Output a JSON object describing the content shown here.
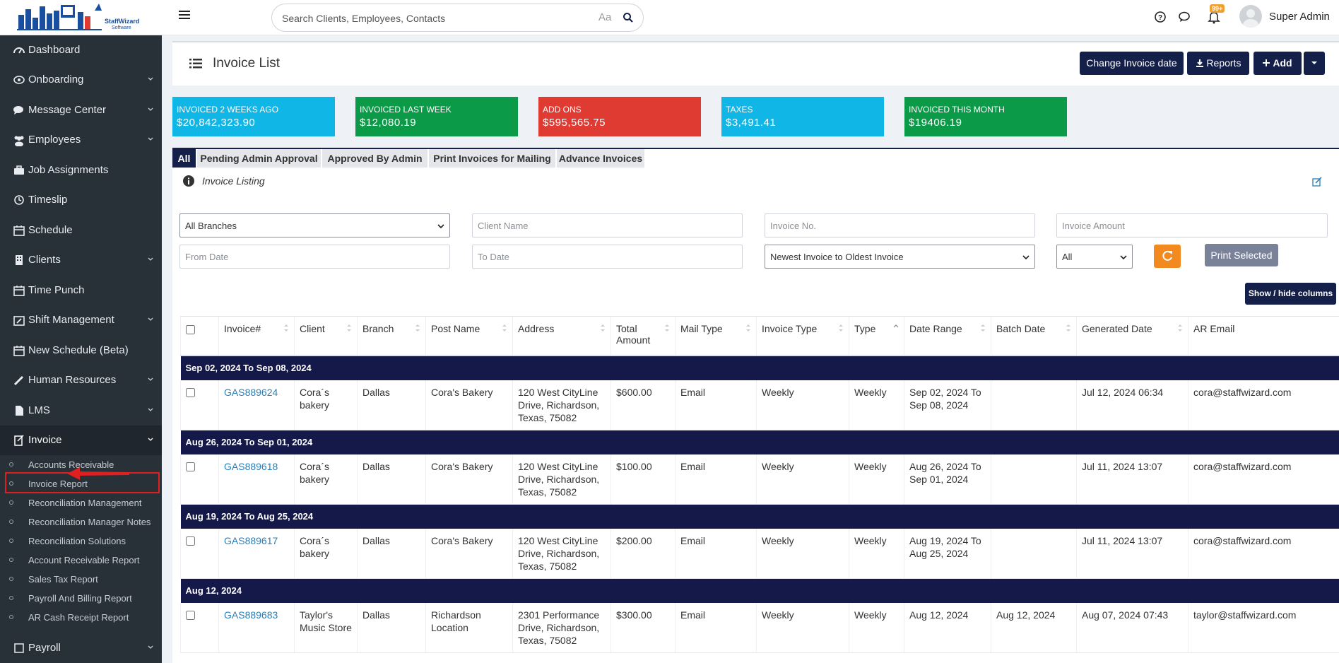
{
  "header": {
    "search_placeholder": "Search Clients, Employees, Contacts",
    "font_toggle": "Aa",
    "notification_count": "99+",
    "user_name": "Super Admin"
  },
  "sidebar": {
    "items": [
      {
        "label": "Dashboard",
        "icon": "dashboard-icon",
        "chevron": false
      },
      {
        "label": "Onboarding",
        "icon": "onboarding-icon",
        "chevron": true
      },
      {
        "label": "Message Center",
        "icon": "chat-icon",
        "chevron": true
      },
      {
        "label": "Employees",
        "icon": "users-icon",
        "chevron": true
      },
      {
        "label": "Job Assignments",
        "icon": "briefcase-icon",
        "chevron": false
      },
      {
        "label": "Timeslip",
        "icon": "clock-icon",
        "chevron": false
      },
      {
        "label": "Schedule",
        "icon": "calendar-icon",
        "chevron": false
      },
      {
        "label": "Clients",
        "icon": "building-icon",
        "chevron": true
      },
      {
        "label": "Time Punch",
        "icon": "calendar-icon",
        "chevron": false
      },
      {
        "label": "Shift Management",
        "icon": "calendar-edit-icon",
        "chevron": true
      },
      {
        "label": "New Schedule (Beta)",
        "icon": "calendar-icon",
        "chevron": false
      },
      {
        "label": "Human Resources",
        "icon": "pencil-icon",
        "chevron": true
      },
      {
        "label": "LMS",
        "icon": "file-icon",
        "chevron": true
      },
      {
        "label": "Invoice",
        "icon": "invoice-icon",
        "chevron": true
      },
      {
        "label": "Payroll",
        "icon": "payroll-icon",
        "chevron": true
      }
    ],
    "sub_items": [
      "Accounts Receivable",
      "Invoice Report",
      "Reconciliation Management",
      "Reconciliation Manager Notes",
      "Reconciliation Solutions",
      "Account Receivable Report",
      "Sales Tax Report",
      "Payroll And Billing Report",
      "AR Cash Receipt Report"
    ]
  },
  "page": {
    "title": "Invoice List",
    "buttons": {
      "change_date": "Change Invoice date",
      "reports": "Reports",
      "add": "Add"
    }
  },
  "stats": [
    {
      "label": "INVOICED 2 WEEKS AGO",
      "value": "$20,842,323.90",
      "color": "#10b6e6"
    },
    {
      "label": "INVOICED LAST WEEK",
      "value": "$12,080.19",
      "color": "#0a9a48"
    },
    {
      "label": "ADD ONS",
      "value": "$595,565.75",
      "color": "#e03b33"
    },
    {
      "label": "TAXES",
      "value": "$3,491.41",
      "color": "#10b6e6"
    },
    {
      "label": "INVOICED THIS MONTH",
      "value": "$19406.19",
      "color": "#0a9a48"
    }
  ],
  "tabs": [
    "All",
    "Pending Admin Approval",
    "Approved By Admin",
    "Print Invoices for Mailing",
    "Advance Invoices"
  ],
  "listing_label": "Invoice Listing",
  "filters": {
    "branch": "All Branches",
    "client_placeholder": "Client Name",
    "invoice_no_placeholder": "Invoice No.",
    "amount_placeholder": "Invoice Amount",
    "from_placeholder": "From Date",
    "to_placeholder": "To Date",
    "sort": "Newest Invoice to Oldest Invoice",
    "status": "All",
    "print_selected": "Print Selected",
    "show_hide": "Show / hide columns"
  },
  "table": {
    "columns": [
      "Invoice#",
      "Client",
      "Branch",
      "Post Name",
      "Address",
      "Total Amount",
      "Mail Type",
      "Invoice Type",
      "Type",
      "Date Range",
      "Batch Date",
      "Generated Date",
      "AR Email"
    ],
    "groups": [
      {
        "title": "Sep 02, 2024 To Sep 08, 2024",
        "rows": [
          [
            "GAS889624",
            "Cora´s bakery",
            "Dallas",
            "Cora's Bakery",
            "120 West CityLine Drive, Richardson, Texas, 75082",
            "$600.00",
            "Email",
            "Weekly",
            "Weekly",
            "Sep 02, 2024 To Sep 08, 2024",
            "",
            "Jul 12, 2024 06:34",
            "cora@staffwizard.com"
          ]
        ]
      },
      {
        "title": "Aug 26, 2024 To Sep 01, 2024",
        "rows": [
          [
            "GAS889618",
            "Cora´s bakery",
            "Dallas",
            "Cora's Bakery",
            "120 West CityLine Drive, Richardson, Texas, 75082",
            "$100.00",
            "Email",
            "Weekly",
            "Weekly",
            "Aug 26, 2024 To Sep 01, 2024",
            "",
            "Jul 11, 2024 13:07",
            "cora@staffwizard.com"
          ]
        ]
      },
      {
        "title": "Aug 19, 2024 To Aug 25, 2024",
        "rows": [
          [
            "GAS889617",
            "Cora´s bakery",
            "Dallas",
            "Cora's Bakery",
            "120 West CityLine Drive, Richardson, Texas, 75082",
            "$200.00",
            "Email",
            "Weekly",
            "Weekly",
            "Aug 19, 2024 To Aug 25, 2024",
            "",
            "Jul 11, 2024 13:07",
            "cora@staffwizard.com"
          ]
        ]
      },
      {
        "title": "Aug 12, 2024",
        "rows": [
          [
            "GAS889683",
            "Taylor's Music Store",
            "Dallas",
            "Richardson Location",
            "2301 Performance Drive, Richardson, Texas, 75082",
            "$300.00",
            "Email",
            "Weekly",
            "Weekly",
            "Aug 12, 2024",
            "Aug 12, 2024",
            "Aug 07, 2024 07:43",
            "taylor@staffwizard.com"
          ]
        ]
      }
    ]
  }
}
